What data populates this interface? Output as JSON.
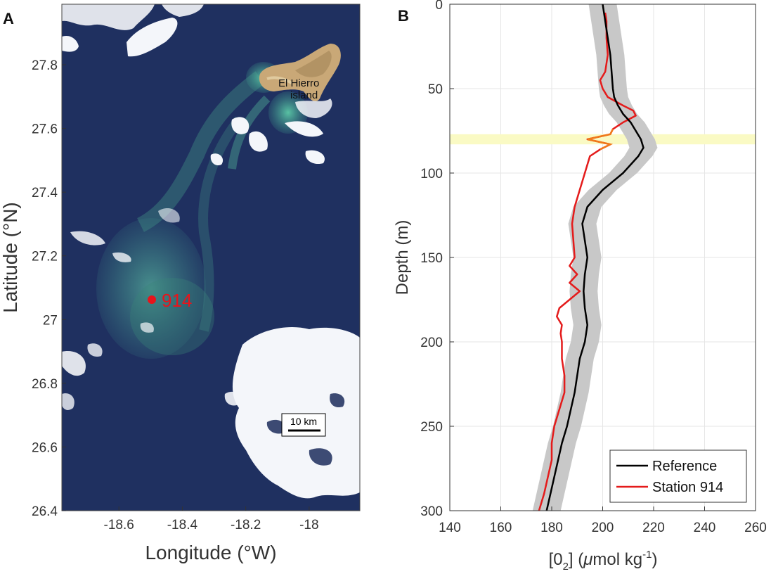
{
  "panel_a": {
    "letter": "A",
    "xlabel": "Longitude (°W)",
    "ylabel": "Latitude (°N)",
    "x_ticks": [
      "-18.6",
      "-18.4",
      "-18.2",
      "-18"
    ],
    "y_ticks": [
      "27.8",
      "27.6",
      "27.4",
      "27.2",
      "27",
      "26.8",
      "26.6",
      "26.4"
    ],
    "island_label_line1": "El Hierro",
    "island_label_line2": "island",
    "station_label": "914",
    "scalebar_label": "10 km",
    "colors": {
      "ocean": "#1c2d5c",
      "plume": "#3f8e8a",
      "cloud": "#f4f6fa",
      "station": "#e8141b",
      "island": "#c9a877"
    }
  },
  "panel_b": {
    "letter": "B",
    "xlabel_main": "[0",
    "xlabel_sub": "2",
    "xlabel_mid": "] (",
    "xlabel_mu": "μ",
    "xlabel_unit": "mol kg",
    "xlabel_exp": "-1",
    "xlabel_end": ")",
    "ylabel": "Depth (m)"
  },
  "chart_data": {
    "type": "line",
    "title": "",
    "xlabel": "[0_2] (μmol kg^-1)",
    "ylabel": "Depth (m)",
    "xlim": [
      140,
      260
    ],
    "ylim": [
      0,
      300
    ],
    "y_inverted": true,
    "x_ticks": [
      140,
      160,
      180,
      200,
      220,
      240,
      260
    ],
    "y_ticks": [
      0,
      50,
      100,
      150,
      200,
      250,
      300
    ],
    "grid": true,
    "legend_position": "bottom-right",
    "highlight_band": {
      "depth_min": 77,
      "depth_max": 83,
      "color": "#fafac4"
    },
    "series": [
      {
        "name": "Reference",
        "color": "#000000",
        "band_halfwidth": 5.5,
        "band_color": "#c8c8c8",
        "depth": [
          0,
          5,
          10,
          20,
          30,
          40,
          50,
          55,
          60,
          65,
          70,
          75,
          80,
          85,
          90,
          100,
          110,
          120,
          130,
          140,
          150,
          160,
          170,
          180,
          190,
          200,
          210,
          220,
          230,
          240,
          250,
          260,
          270,
          280,
          290,
          300
        ],
        "values": [
          200,
          200.5,
          201,
          202,
          203,
          203.5,
          204,
          204.5,
          206,
          208,
          211,
          213,
          215,
          216,
          214,
          208,
          200,
          194,
          192,
          193,
          194,
          193,
          192.5,
          193,
          194,
          193,
          191,
          190,
          189,
          187.5,
          186,
          184,
          182.5,
          181,
          179.5,
          178
        ]
      },
      {
        "name": "Station 914",
        "color": "#e41b1b",
        "depth": [
          5,
          10,
          20,
          30,
          40,
          45,
          50,
          55,
          60,
          63,
          66,
          70,
          74,
          77,
          79,
          80,
          81,
          83,
          86,
          90,
          95,
          100,
          110,
          120,
          130,
          140,
          150,
          155,
          160,
          165,
          170,
          175,
          180,
          185,
          190,
          195,
          200,
          210,
          220,
          230,
          240,
          250,
          260,
          270,
          280,
          290,
          300
        ],
        "values": [
          201,
          201.5,
          201.5,
          202,
          201,
          199,
          200,
          202,
          208,
          212,
          213,
          208,
          204,
          203,
          197,
          194,
          197,
          203,
          199,
          195,
          194,
          193,
          191,
          189,
          188,
          188.5,
          189,
          187,
          190,
          187,
          191,
          187,
          183,
          182,
          184,
          183.5,
          184,
          184,
          185,
          185,
          183,
          181,
          180,
          180,
          178.5,
          177,
          175
        ]
      }
    ]
  }
}
